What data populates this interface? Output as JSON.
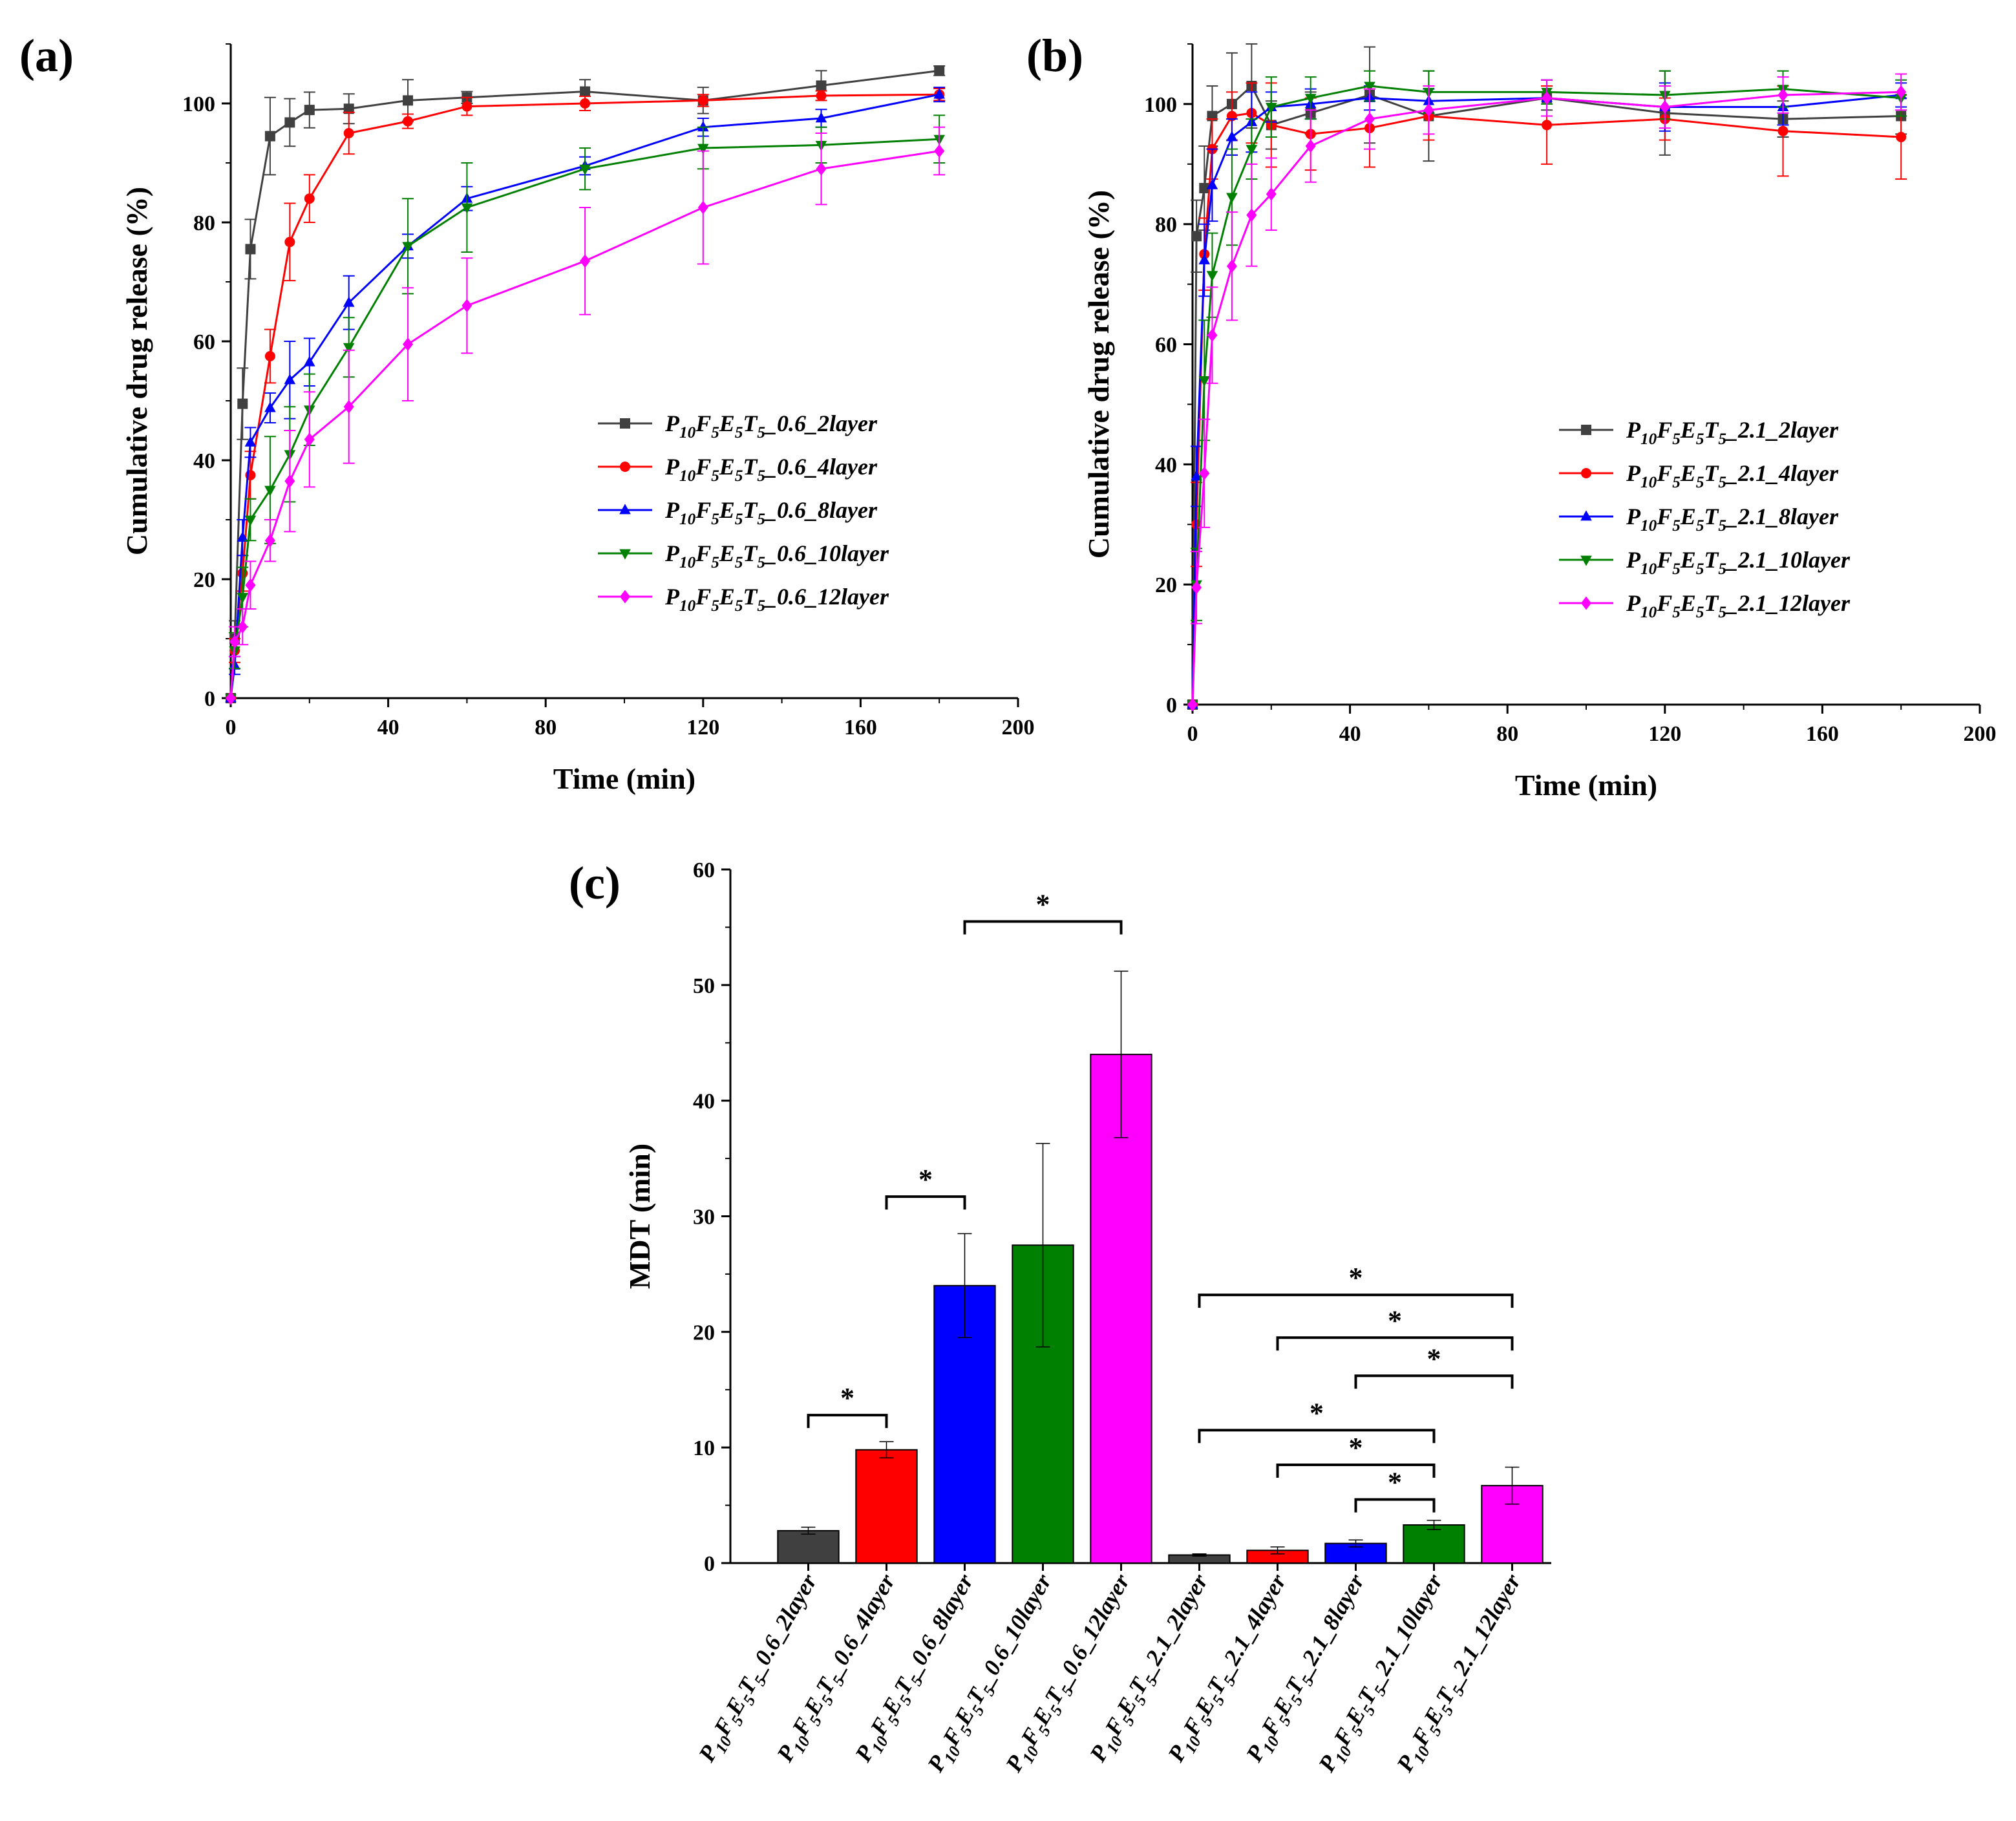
{
  "panels": {
    "a": "(a)",
    "b": "(b)",
    "c": "(c)"
  },
  "legend_prefix": {
    "P": "P",
    "p_sub": "10",
    "F": "F",
    "f_sub": "5",
    "E": "E",
    "e_sub": "5",
    "T": "T",
    "t_sub": "5"
  },
  "colors": {
    "s2": "#404040",
    "s4": "#ff0000",
    "s8": "#0000ff",
    "s10": "#008000",
    "s12": "#ff00ff",
    "axis": "#000000"
  },
  "chart_data": [
    {
      "id": "a",
      "type": "line",
      "title": "",
      "xlabel": "Time (min)",
      "ylabel": "Cumulative drug release (%)",
      "xlim": [
        0,
        200
      ],
      "ylim": [
        0,
        110
      ],
      "xticks": [
        "0",
        "40",
        "80",
        "120",
        "160",
        "200"
      ],
      "yticks": [
        "0",
        "20",
        "40",
        "60",
        "80",
        "100"
      ],
      "legend_position": "center-right",
      "x": [
        0,
        1,
        3,
        5,
        10,
        15,
        20,
        30,
        45,
        60,
        90,
        120,
        150,
        180
      ],
      "series": [
        {
          "name": "_0.6_2layer",
          "color": "#404040",
          "marker": "square",
          "values": [
            0,
            10,
            49.5,
            75.5,
            94.5,
            96.8,
            98.9,
            99.1,
            100.5,
            101.0,
            102.0,
            100.5,
            103.0,
            105.5
          ],
          "errors": [
            0,
            3,
            6,
            5,
            6.5,
            4,
            3,
            2.5,
            3.5,
            1,
            2,
            2.2,
            2.5,
            0.8
          ]
        },
        {
          "name": "_0.6_4layer",
          "color": "#ff0000",
          "marker": "circle",
          "values": [
            0,
            8,
            21,
            37.5,
            57.5,
            76.7,
            84,
            95,
            97,
            99.5,
            100,
            100.5,
            101.3,
            101.5
          ],
          "errors": [
            0,
            2,
            3,
            4,
            4.5,
            6.5,
            4,
            3.5,
            1.2,
            1.5,
            1.2,
            1,
            0.8,
            1
          ]
        },
        {
          "name": "_0.6_8layer",
          "color": "#0000ff",
          "marker": "triangle-up",
          "values": [
            0,
            5.5,
            27,
            43,
            48.8,
            53.5,
            56.5,
            66.5,
            76,
            84,
            89.5,
            96,
            97.5,
            101.5
          ],
          "errors": [
            0,
            1.5,
            3,
            2.5,
            2.5,
            6.5,
            4,
            4.5,
            2,
            2,
            1.5,
            1.5,
            1.5,
            1.2
          ]
        },
        {
          "name": "_0.6_10layer",
          "color": "#008000",
          "marker": "triangle-down",
          "values": [
            0,
            8,
            17,
            30,
            35,
            41,
            48.5,
            59,
            76,
            82.5,
            89,
            92.5,
            93,
            94
          ],
          "errors": [
            0,
            3,
            5,
            3.5,
            9,
            8,
            6,
            5,
            8,
            7.5,
            3.5,
            3.5,
            3,
            4
          ]
        },
        {
          "name": "_0.6_12layer",
          "color": "#ff00ff",
          "marker": "diamond",
          "values": [
            0,
            9.5,
            12,
            19,
            26.5,
            36.5,
            43.5,
            49,
            59.5,
            66,
            73.5,
            82.5,
            89,
            92
          ],
          "errors": [
            0,
            2.5,
            3,
            4,
            3.5,
            8.5,
            8,
            9.5,
            9.5,
            8,
            9,
            9.5,
            6,
            4
          ]
        }
      ]
    },
    {
      "id": "b",
      "type": "line",
      "title": "",
      "xlabel": "Time (min)",
      "ylabel": "Cumulative drug release (%)",
      "xlim": [
        0,
        200
      ],
      "ylim": [
        0,
        110
      ],
      "xticks": [
        "0",
        "40",
        "80",
        "120",
        "160",
        "200"
      ],
      "yticks": [
        "0",
        "20",
        "40",
        "60",
        "80",
        "100"
      ],
      "legend_position": "center-right",
      "x": [
        0,
        1,
        3,
        5,
        10,
        15,
        20,
        30,
        45,
        60,
        90,
        120,
        150,
        180
      ],
      "series": [
        {
          "name": "_2.1_2layer",
          "color": "#404040",
          "marker": "square",
          "values": [
            0,
            78,
            86,
            98,
            100,
            103,
            96.5,
            98.5,
            101.5,
            98,
            101,
            98.5,
            97.5,
            98
          ],
          "errors": [
            0,
            6,
            7,
            5,
            8.5,
            7,
            4,
            3.5,
            8,
            7.5,
            2,
            7,
            3,
            3
          ]
        },
        {
          "name": "_2.1_4layer",
          "color": "#ff0000",
          "marker": "circle",
          "values": [
            0,
            30,
            75,
            92.5,
            98,
            98.5,
            96.5,
            95,
            96,
            98,
            96.5,
            97.5,
            95.5,
            94.5
          ],
          "errors": [
            0,
            7,
            6,
            5,
            4,
            5,
            7,
            6,
            6.5,
            4,
            6.5,
            3.5,
            7.5,
            7
          ]
        },
        {
          "name": "_2.1_8layer",
          "color": "#0000ff",
          "marker": "triangle-up",
          "values": [
            0,
            38,
            74,
            86.5,
            94.5,
            97,
            99.5,
            100,
            101,
            100.5,
            101,
            99.5,
            99.5,
            101.5
          ],
          "errors": [
            0,
            5,
            6,
            6,
            3,
            5,
            2.5,
            2.5,
            2,
            2,
            3,
            4,
            3,
            2
          ]
        },
        {
          "name": "_2.1_10layer",
          "color": "#008000",
          "marker": "triangle-down",
          "values": [
            0,
            20,
            54,
            71.5,
            84.5,
            92.5,
            99.5,
            101,
            103,
            102,
            102,
            101.5,
            102.5,
            101
          ],
          "errors": [
            0,
            6,
            10,
            7,
            8,
            5,
            5,
            3.5,
            2.5,
            3.5,
            2,
            4,
            3,
            3
          ]
        },
        {
          "name": "_2.1_12layer",
          "color": "#ff00ff",
          "marker": "diamond",
          "values": [
            0,
            19.5,
            38.5,
            61.5,
            73,
            81.5,
            85,
            93,
            97.5,
            99,
            101,
            99.5,
            101.5,
            102
          ],
          "errors": [
            0,
            6,
            9,
            8,
            9,
            8.5,
            6,
            6,
            5,
            4,
            3,
            3.5,
            3,
            3
          ]
        }
      ]
    },
    {
      "id": "c",
      "type": "bar",
      "title": "",
      "xlabel": "",
      "ylabel": "MDT (min)",
      "ylim": [
        0,
        60
      ],
      "yticks": [
        "0",
        "10",
        "20",
        "30",
        "40",
        "50",
        "60"
      ],
      "categories": [
        "_0.6_2layer",
        "_0.6_4layer",
        "_0.6_8layer",
        "_0.6_10layer",
        "_0.6_12layer",
        "_2.1_2layer",
        "_2.1_4layer",
        "_2.1_8layer",
        "_2.1_10layer",
        "_2.1_12layer"
      ],
      "values": [
        2.8,
        9.8,
        24.0,
        27.5,
        44.0,
        0.7,
        1.1,
        1.7,
        3.3,
        6.7
      ],
      "errors": [
        0.3,
        0.7,
        4.5,
        8.8,
        7.2,
        0.1,
        0.3,
        0.3,
        0.4,
        1.6
      ],
      "colors": [
        "#404040",
        "#ff0000",
        "#0000ff",
        "#008000",
        "#ff00ff",
        "#404040",
        "#ff0000",
        "#0000ff",
        "#008000",
        "#ff00ff"
      ],
      "significance": [
        {
          "from": 0,
          "to": 1,
          "y": 12.8,
          "label": "*"
        },
        {
          "from": 1,
          "to": 2,
          "y": 31.7,
          "label": "*"
        },
        {
          "from": 2,
          "to": 4,
          "y": 55.5,
          "label": "*"
        },
        {
          "from": 5,
          "to": 9,
          "y": 23.2,
          "label": "*"
        },
        {
          "from": 6,
          "to": 9,
          "y": 19.5,
          "label": "*"
        },
        {
          "from": 7,
          "to": 9,
          "y": 16.2,
          "label": "*"
        },
        {
          "from": 5,
          "to": 8,
          "y": 11.5,
          "label": "*"
        },
        {
          "from": 6,
          "to": 8,
          "y": 8.5,
          "label": "*"
        },
        {
          "from": 7,
          "to": 8,
          "y": 5.5,
          "label": "*"
        }
      ]
    }
  ]
}
